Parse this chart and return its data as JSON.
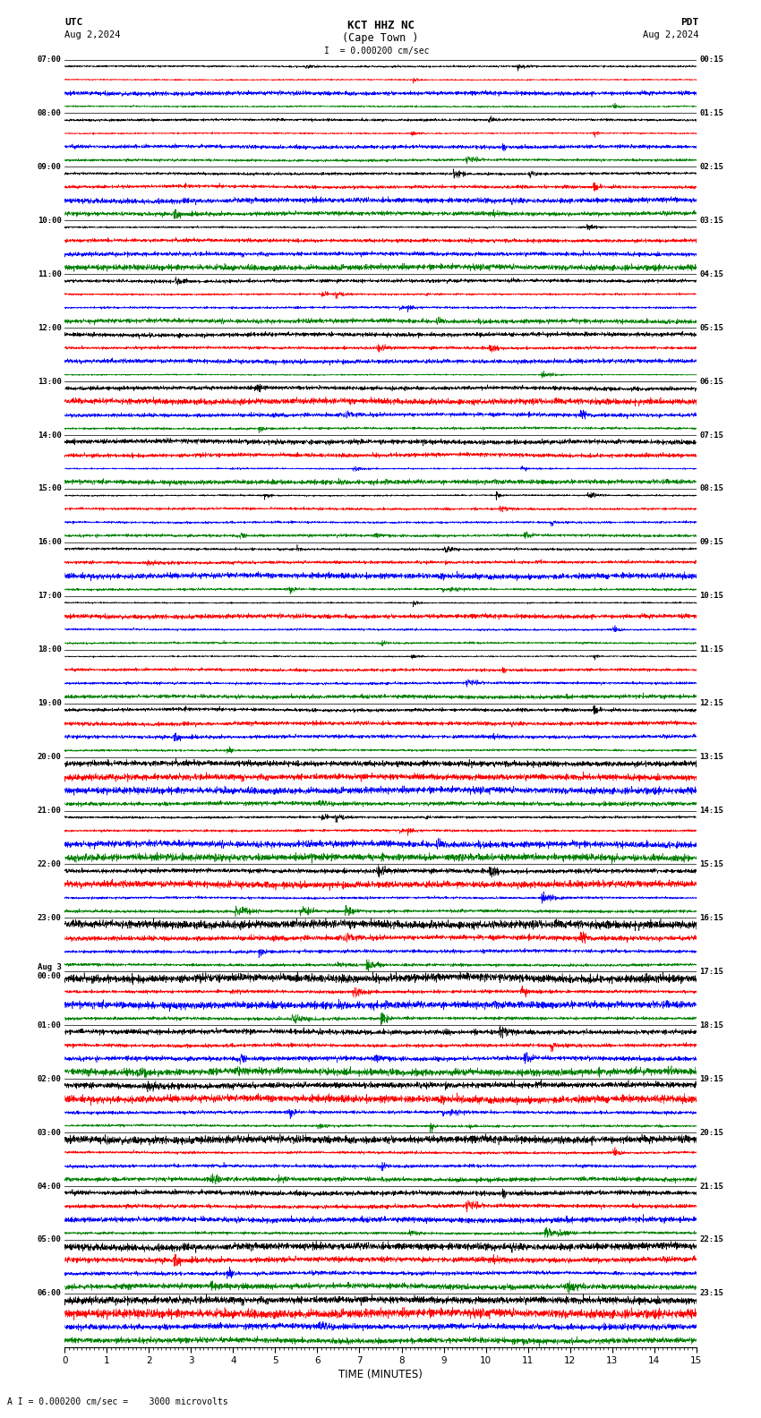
{
  "title_line1": "KCT HHZ NC",
  "title_line2": "(Cape Town )",
  "scale_label": "I = 0.000200 cm/sec",
  "utc_label": "UTC",
  "utc_date": "Aug 2,2024",
  "pdt_label": "PDT",
  "pdt_date": "Aug 2,2024",
  "footer": "A I = 0.000200 cm/sec =    3000 microvolts",
  "left_times_utc": [
    "07:00",
    "08:00",
    "09:00",
    "10:00",
    "11:00",
    "12:00",
    "13:00",
    "14:00",
    "15:00",
    "16:00",
    "17:00",
    "18:00",
    "19:00",
    "20:00",
    "21:00",
    "22:00",
    "23:00",
    "Aug 3\n00:00",
    "01:00",
    "02:00",
    "03:00",
    "04:00",
    "05:00",
    "06:00"
  ],
  "right_times_pdt": [
    "00:15",
    "01:15",
    "02:15",
    "03:15",
    "04:15",
    "05:15",
    "06:15",
    "07:15",
    "08:15",
    "09:15",
    "10:15",
    "11:15",
    "12:15",
    "13:15",
    "14:15",
    "15:15",
    "16:15",
    "17:15",
    "18:15",
    "19:15",
    "20:15",
    "21:15",
    "22:15",
    "23:15"
  ],
  "colors": [
    "black",
    "red",
    "blue",
    "green"
  ],
  "n_rows": 24,
  "traces_per_row": 4,
  "bg_color": "white",
  "xlabel": "TIME (MINUTES)",
  "xticks": [
    0,
    1,
    2,
    3,
    4,
    5,
    6,
    7,
    8,
    9,
    10,
    11,
    12,
    13,
    14,
    15
  ],
  "duration_minutes": 15,
  "row_amplitudes": [
    0.3,
    0.28,
    0.32,
    0.3,
    0.28,
    0.3,
    0.32,
    0.28,
    0.3,
    0.32,
    0.28,
    0.3,
    0.32,
    0.35,
    0.38,
    0.5,
    0.7,
    0.9,
    0.9,
    0.8,
    0.4,
    0.45,
    0.55,
    0.5
  ]
}
